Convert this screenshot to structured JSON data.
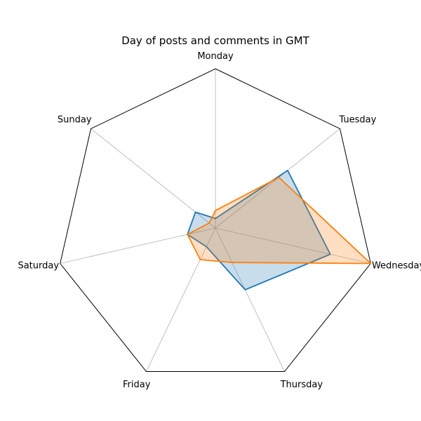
{
  "chart_data": {
    "type": "radar",
    "title": "Day of posts and comments in GMT",
    "categories": [
      "Monday",
      "Tuesday",
      "Wednesday",
      "Thursday",
      "Friday",
      "Saturday",
      "Sunday"
    ],
    "rmax": 1.0,
    "grid": true,
    "legend": false,
    "series": [
      {
        "color": "#1f77b4",
        "values": [
          0.06,
          0.58,
          0.74,
          0.43,
          0.13,
          0.18,
          0.16
        ]
      },
      {
        "color": "#ff7f0e",
        "values": [
          0.11,
          0.51,
          1.0,
          0.24,
          0.22,
          0.18,
          0.05
        ]
      }
    ]
  }
}
